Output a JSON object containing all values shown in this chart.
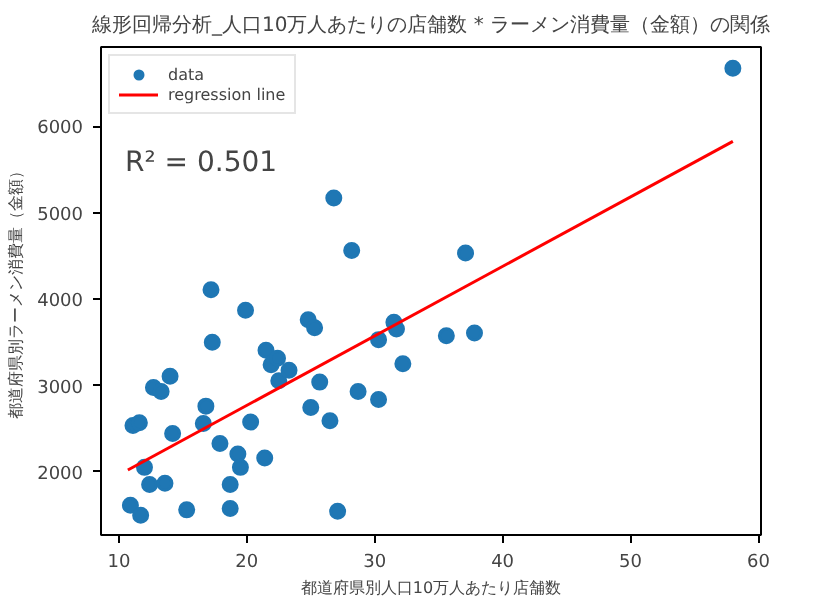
{
  "chart_data": {
    "type": "scatter",
    "title": "線形回帰分析_人口10万人あたりの店舗数 * ラーメン消費量（金額）の関係",
    "xlabel": "都道府県別人口10万人あたり店舗数",
    "ylabel": "都道府県別ラーメン消費量（金額）",
    "annotations": [
      "R² = 0.501"
    ],
    "series": [
      {
        "name": "data",
        "color": "#1f77b4",
        "marker": "circle",
        "x": [
          10.9,
          11.7,
          11.1,
          11.6,
          12.0,
          12.4,
          12.7,
          13.3,
          13.6,
          14.0,
          14.2,
          15.3,
          16.6,
          16.8,
          17.2,
          17.3,
          17.9,
          18.7,
          18.7,
          19.3,
          19.5,
          19.9,
          20.3,
          21.4,
          21.5,
          21.9,
          22.4,
          22.5,
          23.3,
          24.8,
          25.0,
          25.3,
          25.7,
          26.5,
          27.1,
          28.7,
          30.3,
          30.3,
          31.5,
          31.7,
          32.2,
          35.6,
          37.8,
          26.8,
          28.2,
          37.1,
          58.0
        ],
        "values": [
          1614,
          1499,
          2538,
          2570,
          2053,
          1854,
          2977,
          2931,
          1868,
          3109,
          2446,
          1561,
          2562,
          2762,
          4109,
          3502,
          2330,
          1854,
          1577,
          2208,
          2053,
          3871,
          2578,
          2162,
          3409,
          3240,
          3317,
          3056,
          3178,
          3763,
          2746,
          3670,
          3040,
          2594,
          1545,
          2931,
          3532,
          2839,
          3733,
          3656,
          3254,
          3578,
          3610,
          5172,
          4564,
          4534,
          6673
        ]
      },
      {
        "name": "regression line",
        "type": "line",
        "color": "#ff0000",
        "x": [
          10.7,
          58.0
        ],
        "values": [
          2023,
          5828
        ]
      }
    ],
    "legend": "top left",
    "grid": false,
    "xlim": [
      8.6,
      60.2
    ],
    "ylim": [
      1270,
      6920
    ],
    "xticks": [
      10,
      20,
      30,
      40,
      50,
      60
    ],
    "yticks": [
      2000,
      3000,
      4000,
      5000,
      6000
    ]
  }
}
